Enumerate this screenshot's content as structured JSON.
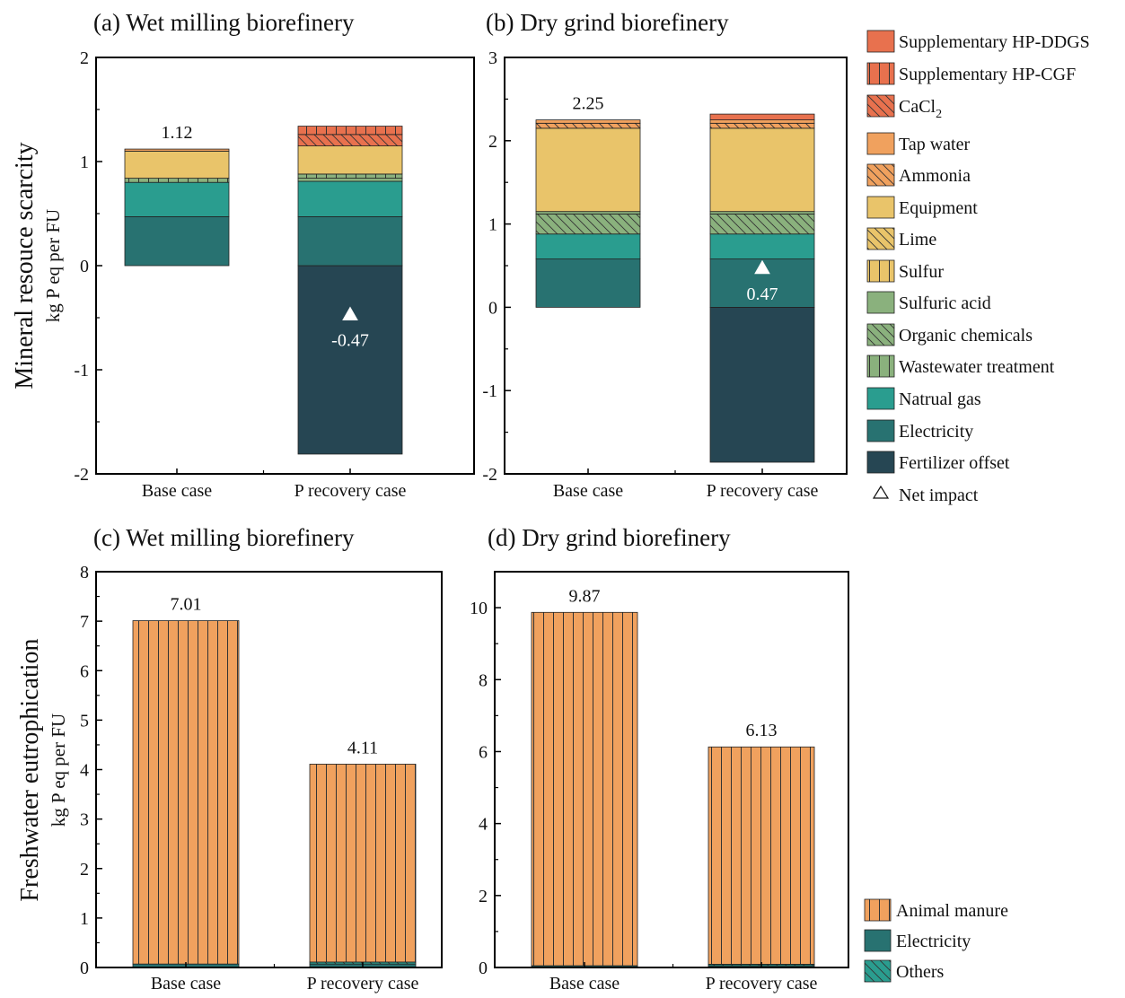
{
  "figure": {
    "top_ylabel": "Mineral resouce scarcity",
    "top_yunit": "kg P eq per FU",
    "bottom_ylabel": "Freshwater eutrophication",
    "bottom_yunit": "kg P eq per FU"
  },
  "colors": {
    "Supplementary HP-DDGS": "#E8714E",
    "Supplementary HP-CGF": "#E8714E",
    "CaCl2": "#E8714E",
    "Tap water": "#F0A15E",
    "Ammonia": "#F0A15E",
    "Equipment": "#E9C46A",
    "Lime": "#E9C46A",
    "Sulfur": "#E9C46A",
    "Sulfuric acid": "#8AB17D",
    "Organic chemicals": "#8AB17D",
    "Wastewater treatment": "#8AB17D",
    "Natrual gas": "#2A9D8F",
    "Electricity": "#287271",
    "Fertilizer offset": "#264653",
    "Animal manure": "#F0A15E",
    "Others": "#2A9D8F"
  },
  "patterns": {
    "Supplementary HP-DDGS": "solid",
    "Supplementary HP-CGF": "vertical",
    "CaCl2": "diagonal",
    "Tap water": "solid",
    "Ammonia": "diagonal",
    "Equipment": "solid",
    "Lime": "diagonal",
    "Sulfur": "vertical",
    "Sulfuric acid": "solid",
    "Organic chemicals": "diagonal",
    "Wastewater treatment": "vertical",
    "Natrual gas": "solid",
    "Electricity": "solid",
    "Fertilizer offset": "solid",
    "Animal manure": "vertical",
    "Others": "diagonal"
  },
  "legend_top": {
    "items": [
      {
        "label": "Supplementary HP-DDGS",
        "key": "Supplementary HP-DDGS"
      },
      {
        "label": "Supplementary HP-CGF",
        "key": "Supplementary HP-CGF"
      },
      {
        "label": "CaCl",
        "sub": "2",
        "key": "CaCl2"
      },
      {
        "label": "Tap water",
        "key": "Tap water"
      },
      {
        "label": "Ammonia",
        "key": "Ammonia"
      },
      {
        "label": "Equipment",
        "key": "Equipment"
      },
      {
        "label": "Lime",
        "key": "Lime"
      },
      {
        "label": "Sulfur",
        "key": "Sulfur"
      },
      {
        "label": "Sulfuric acid",
        "key": "Sulfuric acid"
      },
      {
        "label": "Organic chemicals",
        "key": "Organic chemicals"
      },
      {
        "label": "Wastewater treatment",
        "key": "Wastewater treatment"
      },
      {
        "label": "Natrual gas",
        "key": "Natrual gas"
      },
      {
        "label": "Electricity",
        "key": "Electricity"
      },
      {
        "label": "Fertilizer offset",
        "key": "Fertilizer offset"
      }
    ],
    "net_label": "Net impact"
  },
  "legend_bottom": {
    "items": [
      {
        "label": "Animal manure",
        "key": "Animal manure"
      },
      {
        "label": "Electricity",
        "key": "Electricity"
      },
      {
        "label": "Others",
        "key": "Others"
      }
    ]
  },
  "chart_data": [
    {
      "id": "a",
      "type": "bar",
      "stacked": true,
      "title": "(a)  Wet milling biorefinery",
      "xlabel": "",
      "ylabel": "Mineral resouce scarcity (kg P eq per FU)",
      "ylim": [
        -2,
        2
      ],
      "yticks": [
        -2,
        -1,
        0,
        1,
        2
      ],
      "categories": [
        "Base case",
        "P recovery case"
      ],
      "series": [
        {
          "name": "Fertilizer offset",
          "values": [
            0,
            -1.81
          ]
        },
        {
          "name": "Electricity",
          "values": [
            0.47,
            0.47
          ]
        },
        {
          "name": "Natrual gas",
          "values": [
            0.33,
            0.34
          ]
        },
        {
          "name": "Sulfuric acid",
          "values": [
            0.0,
            0.03
          ]
        },
        {
          "name": "Wastewater treatment",
          "values": [
            0.04,
            0.04
          ]
        },
        {
          "name": "Equipment",
          "values": [
            0.26,
            0.27
          ]
        },
        {
          "name": "Tap water",
          "values": [
            0.02,
            0.0
          ]
        },
        {
          "name": "CaCl2",
          "values": [
            0,
            0.11
          ]
        },
        {
          "name": "Supplementary HP-CGF",
          "values": [
            0,
            0.08
          ]
        }
      ],
      "totals_labels": [
        "1.12",
        null
      ],
      "net_impact": [
        null,
        -0.47
      ],
      "net_labels": [
        null,
        "-0.47"
      ]
    },
    {
      "id": "b",
      "type": "bar",
      "stacked": true,
      "title": "(b)  Dry grind biorefinery",
      "xlabel": "",
      "ylabel": "Mineral resouce scarcity (kg P eq per FU)",
      "ylim": [
        -2,
        3
      ],
      "yticks": [
        -2,
        -1,
        0,
        1,
        2,
        3
      ],
      "categories": [
        "Base case",
        "P recovery case"
      ],
      "series": [
        {
          "name": "Fertilizer offset",
          "values": [
            0,
            -1.86
          ]
        },
        {
          "name": "Electricity",
          "values": [
            0.58,
            0.58
          ]
        },
        {
          "name": "Natrual gas",
          "values": [
            0.3,
            0.3
          ]
        },
        {
          "name": "Organic chemicals",
          "values": [
            0.24,
            0.24
          ]
        },
        {
          "name": "Sulfuric acid",
          "values": [
            0.03,
            0.03
          ]
        },
        {
          "name": "Equipment",
          "values": [
            1.0,
            1.0
          ]
        },
        {
          "name": "Ammonia",
          "values": [
            0.06,
            0.06
          ]
        },
        {
          "name": "Tap water",
          "values": [
            0.04,
            0.04
          ]
        },
        {
          "name": "Supplementary HP-DDGS",
          "values": [
            0,
            0.07
          ]
        }
      ],
      "totals_labels": [
        "2.25",
        null
      ],
      "net_impact": [
        null,
        0.47
      ],
      "net_labels": [
        null,
        "0.47"
      ]
    },
    {
      "id": "c",
      "type": "bar",
      "stacked": true,
      "title": "(c)  Wet milling biorefinery",
      "xlabel": "",
      "ylabel": "Freshwater eutrophication (kg P eq per FU)",
      "ylim": [
        0,
        8
      ],
      "yticks": [
        0,
        1,
        2,
        3,
        4,
        5,
        6,
        7,
        8
      ],
      "categories": [
        "Base case",
        "P recovery case"
      ],
      "series": [
        {
          "name": "Electricity",
          "values": [
            0.07,
            0.07
          ]
        },
        {
          "name": "Others",
          "values": [
            0.0,
            0.04
          ]
        },
        {
          "name": "Animal manure",
          "values": [
            6.94,
            4.0
          ]
        }
      ],
      "totals_labels": [
        "7.01",
        "4.11"
      ]
    },
    {
      "id": "d",
      "type": "bar",
      "stacked": true,
      "title": "(d)  Dry grind biorefinery",
      "xlabel": "",
      "ylabel": "Freshwater eutrophication (kg P eq per FU)",
      "ylim": [
        0,
        11
      ],
      "yticks": [
        0,
        2,
        4,
        6,
        8,
        10
      ],
      "categories": [
        "Base case",
        "P recovery case"
      ],
      "series": [
        {
          "name": "Electricity",
          "values": [
            0.05,
            0.05
          ]
        },
        {
          "name": "Others",
          "values": [
            0.0,
            0.04
          ]
        },
        {
          "name": "Animal manure",
          "values": [
            9.82,
            6.04
          ]
        }
      ],
      "totals_labels": [
        "9.87",
        "6.13"
      ]
    }
  ]
}
